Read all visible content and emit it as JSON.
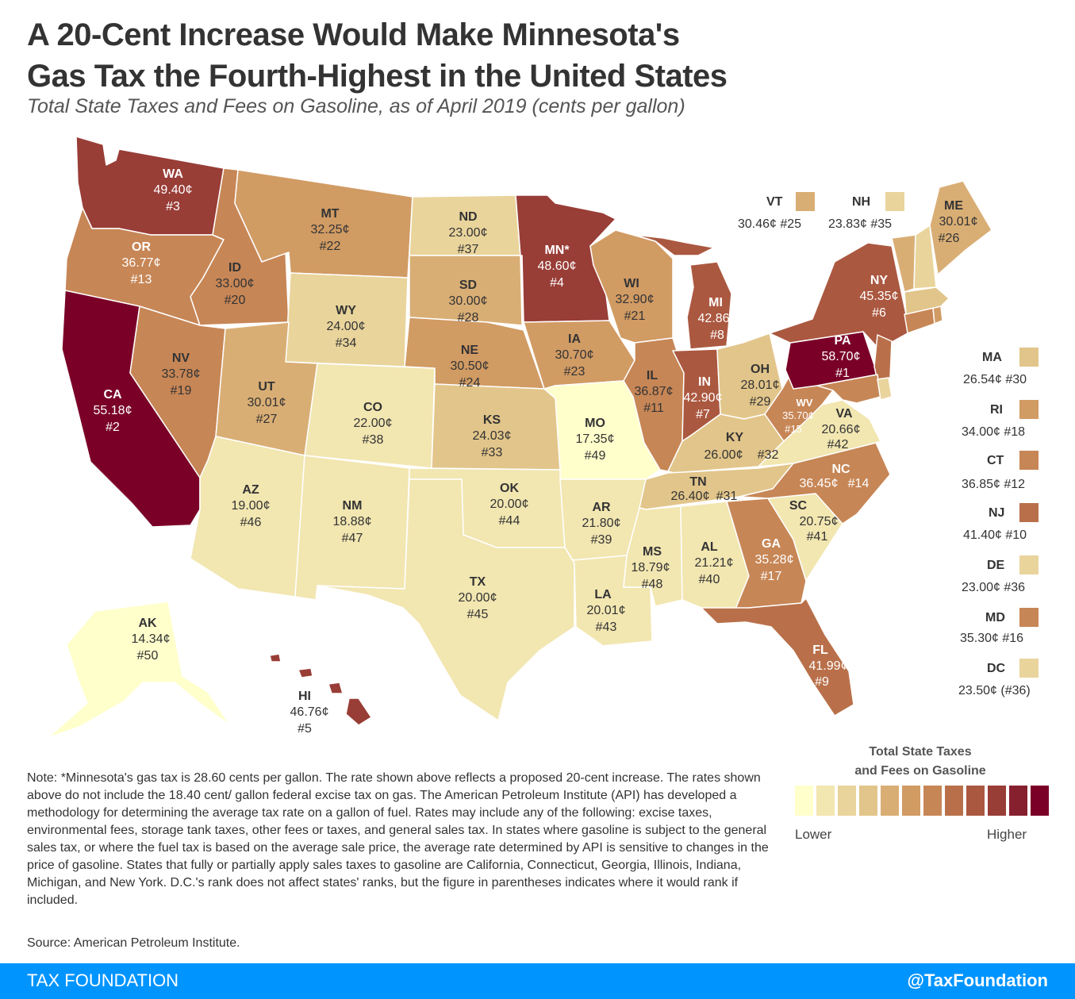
{
  "title_line1": "A 20-Cent Increase Would Make Minnesota's",
  "title_line2": "Gas Tax the Fourth-Highest in the United States",
  "subtitle": "Total State Taxes and Fees on Gasoline, as of April 2019 (cents per gallon)",
  "colors": {
    "c1": "#ffffcc",
    "c2": "#f2e6b1",
    "c3": "#e9d49c",
    "c4": "#e2c58a",
    "c5": "#d9ae75",
    "c6": "#d19b64",
    "c7": "#c78656",
    "c8": "#b9704a",
    "c9": "#ab5840",
    "c10": "#993d37",
    "c11": "#86202f",
    "c12": "#7a0028",
    "line": "#ffffff"
  },
  "chart_data": {
    "type": "choropleth",
    "title": "A 20-Cent Increase Would Make Minnesota's Gas Tax the Fourth-Highest in the United States",
    "unit": "cents per gallon",
    "states": [
      {
        "code": "WA",
        "value": "49.40¢",
        "rank": "#3"
      },
      {
        "code": "OR",
        "value": "36.77¢",
        "rank": "#13"
      },
      {
        "code": "CA",
        "value": "55.18¢",
        "rank": "#2"
      },
      {
        "code": "ID",
        "value": "33.00¢",
        "rank": "#20"
      },
      {
        "code": "NV",
        "value": "33.78¢",
        "rank": "#19"
      },
      {
        "code": "MT",
        "value": "32.25¢",
        "rank": "#22"
      },
      {
        "code": "WY",
        "value": "24.00¢",
        "rank": "#34"
      },
      {
        "code": "UT",
        "value": "30.01¢",
        "rank": "#27"
      },
      {
        "code": "AZ",
        "value": "19.00¢",
        "rank": "#46"
      },
      {
        "code": "CO",
        "value": "22.00¢",
        "rank": "#38"
      },
      {
        "code": "NM",
        "value": "18.88¢",
        "rank": "#47"
      },
      {
        "code": "ND",
        "value": "23.00¢",
        "rank": "#37"
      },
      {
        "code": "SD",
        "value": "30.00¢",
        "rank": "#28"
      },
      {
        "code": "NE",
        "value": "30.50¢",
        "rank": "#24"
      },
      {
        "code": "KS",
        "value": "24.03¢",
        "rank": "#33"
      },
      {
        "code": "OK",
        "value": "20.00¢",
        "rank": "#44"
      },
      {
        "code": "TX",
        "value": "20.00¢",
        "rank": "#45"
      },
      {
        "code": "MN*",
        "value": "48.60¢",
        "rank": "#4"
      },
      {
        "code": "IA",
        "value": "30.70¢",
        "rank": "#23"
      },
      {
        "code": "MO",
        "value": "17.35¢",
        "rank": "#49"
      },
      {
        "code": "AR",
        "value": "21.80¢",
        "rank": "#39"
      },
      {
        "code": "LA",
        "value": "20.01¢",
        "rank": "#43"
      },
      {
        "code": "WI",
        "value": "32.90¢",
        "rank": "#21"
      },
      {
        "code": "IL",
        "value": "36.87¢",
        "rank": "#11"
      },
      {
        "code": "MI",
        "value": "42.86¢",
        "rank": "#8"
      },
      {
        "code": "IN",
        "value": "42.90¢",
        "rank": "#7"
      },
      {
        "code": "OH",
        "value": "28.01¢",
        "rank": "#29"
      },
      {
        "code": "KY",
        "value": "26.00¢",
        "rank": "#32"
      },
      {
        "code": "TN",
        "value": "26.40¢",
        "rank": "#31"
      },
      {
        "code": "MS",
        "value": "18.79¢",
        "rank": "#48"
      },
      {
        "code": "AL",
        "value": "21.21¢",
        "rank": "#40"
      },
      {
        "code": "GA",
        "value": "35.28¢",
        "rank": "#17"
      },
      {
        "code": "FL",
        "value": "41.99¢",
        "rank": "#9"
      },
      {
        "code": "SC",
        "value": "20.75¢",
        "rank": "#41"
      },
      {
        "code": "NC",
        "value": "36.45¢",
        "rank": "#14"
      },
      {
        "code": "VA",
        "value": "20.66¢",
        "rank": "#42"
      },
      {
        "code": "WV",
        "value": "35.70¢",
        "rank": "#15"
      },
      {
        "code": "PA",
        "value": "58.70¢",
        "rank": "#1"
      },
      {
        "code": "NY",
        "value": "45.35¢",
        "rank": "#6"
      },
      {
        "code": "ME",
        "value": "30.01¢",
        "rank": "#26"
      },
      {
        "code": "AK",
        "value": "14.34¢",
        "rank": "#50"
      },
      {
        "code": "HI",
        "value": "46.76¢",
        "rank": "#5"
      }
    ],
    "small_states": [
      {
        "code": "VT",
        "value": "30.46¢ #25"
      },
      {
        "code": "NH",
        "value": "23.83¢ #35"
      },
      {
        "code": "MA",
        "value": "26.54¢ #30"
      },
      {
        "code": "RI",
        "value": "34.00¢ #18"
      },
      {
        "code": "CT",
        "value": "36.85¢ #12"
      },
      {
        "code": "NJ",
        "value": "41.40¢ #10"
      },
      {
        "code": "DE",
        "value": "23.00¢ #36"
      },
      {
        "code": "MD",
        "value": "35.30¢ #16"
      },
      {
        "code": "DC",
        "value": "23.50¢ (#36)"
      }
    ],
    "legend": {
      "title_line1": "Total State Taxes",
      "title_line2": "and Fees on Gasoline",
      "low_label": "Lower",
      "high_label": "Higher"
    }
  },
  "note": "Note: *Minnesota's gas tax is 28.60 cents per gallon. The rate shown above reflects a proposed 20-cent increase. The rates shown above do not include the 18.40 cent/ gallon federal excise tax on gas. The American Petroleum Institute (API) has developed a methodology for determining the average tax rate on a gallon of fuel. Rates may include any of the following: excise taxes, environmental fees, storage tank taxes, other fees or taxes, and general sales tax. In states where gasoline is subject to the general sales tax, or where the fuel tax is based on the average sale price, the average rate determined by API is sensitive to changes in the price of gasoline. States that fully or partially apply sales taxes to gasoline are California, Connecticut, Georgia, Illinois, Indiana, Michigan, and New York. D.C.'s rank does not affect states' ranks, but the figure in parentheses indicates where it would rank if included.",
  "source": "Source: American Petroleum Institute.",
  "footer": {
    "left": "TAX FOUNDATION",
    "right": "@TaxFoundation"
  }
}
